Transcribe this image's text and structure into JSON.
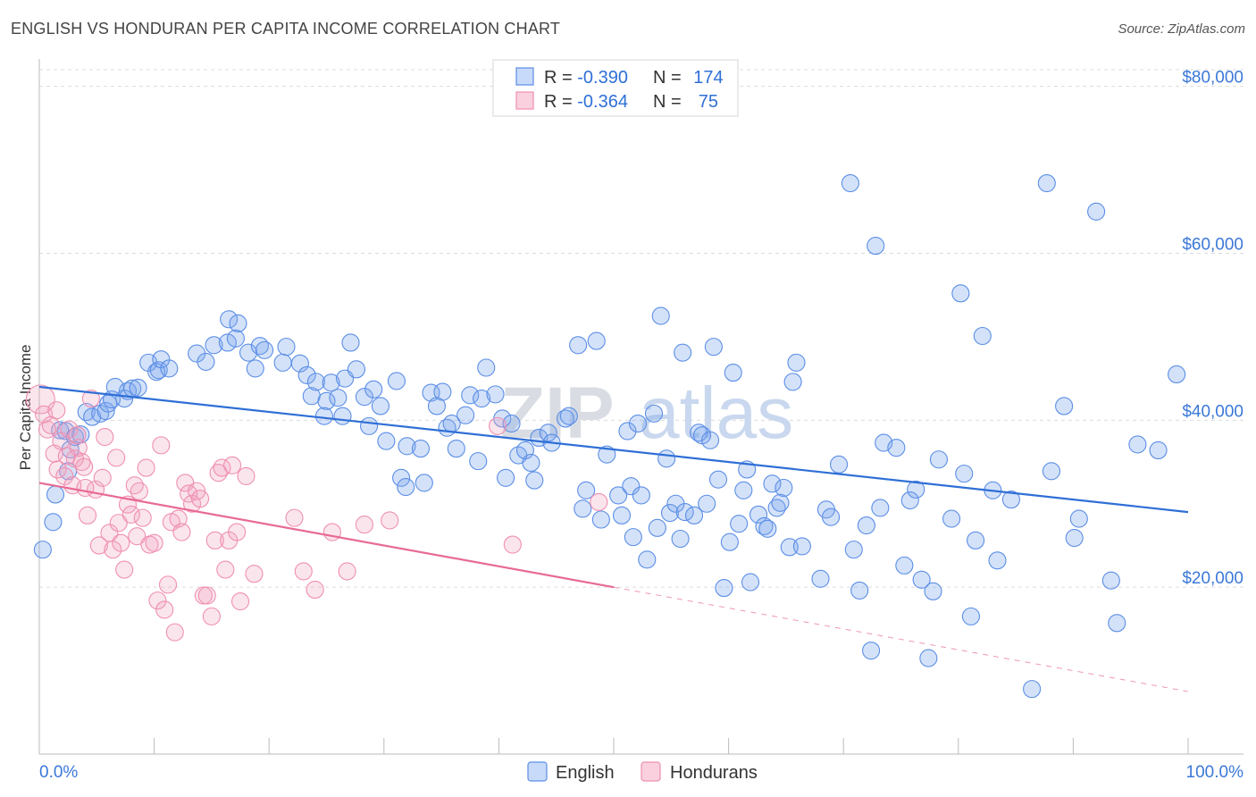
{
  "title": "ENGLISH VS HONDURAN PER CAPITA INCOME CORRELATION CHART",
  "source": "Source: ZipAtlas.com",
  "watermark": {
    "zip": "ZIP",
    "atlas": "atlas"
  },
  "legend_box": {
    "rows": [
      {
        "r_label": "R = ",
        "r_value": "-0.390",
        "n_label": "N = ",
        "n_value": "174",
        "color": "#5b8ee6"
      },
      {
        "r_label": "R = ",
        "r_value": "-0.364",
        "n_label": "N = ",
        "n_value": " 75",
        "color": "#ef8fb0"
      }
    ]
  },
  "bottom_legend": [
    {
      "label": "English",
      "color": "#5b8ee6"
    },
    {
      "label": "Hondurans",
      "color": "#ef8fb0"
    }
  ],
  "colors": {
    "english": "#5b8ee6",
    "hondurans": "#ef8fb0",
    "english_line": "#2f6fd6",
    "hondurans_line": "#e86a96",
    "tick_label": "#3b78d8"
  },
  "chart_data": {
    "type": "scatter",
    "title": "ENGLISH VS HONDURAN PER CAPITA INCOME CORRELATION CHART",
    "xlabel": "",
    "ylabel": "Per Capita Income",
    "x_ticks_labels": [
      "0.0%",
      "100.0%"
    ],
    "y_ticks_labels": [
      "$20,000",
      "$40,000",
      "$60,000",
      "$80,000"
    ],
    "y_ticks": [
      20000,
      40000,
      60000,
      80000
    ],
    "xlim": [
      0,
      100
    ],
    "ylim": [
      0,
      82000
    ],
    "grid": true,
    "legend_placement": "top-center",
    "series": [
      {
        "name": "English",
        "R": -0.39,
        "N": 174,
        "trend": {
          "x": [
            0,
            100
          ],
          "y": [
            44000,
            29000
          ]
        },
        "points": [
          [
            0.3,
            24500
          ],
          [
            1.2,
            27800
          ],
          [
            1.4,
            31100
          ],
          [
            1.8,
            38800
          ],
          [
            2.3,
            38700
          ],
          [
            2.5,
            33900
          ],
          [
            2.7,
            36500
          ],
          [
            3.1,
            38000
          ],
          [
            3.6,
            38300
          ],
          [
            4.1,
            41000
          ],
          [
            4.6,
            40400
          ],
          [
            5.3,
            40800
          ],
          [
            5.8,
            41100
          ],
          [
            6.0,
            42000
          ],
          [
            6.3,
            42500
          ],
          [
            6.6,
            44000
          ],
          [
            7.4,
            42600
          ],
          [
            7.7,
            43500
          ],
          [
            8.1,
            43800
          ],
          [
            8.6,
            43900
          ],
          [
            9.5,
            46900
          ],
          [
            10.2,
            45800
          ],
          [
            10.4,
            46000
          ],
          [
            10.6,
            47300
          ],
          [
            11.3,
            46200
          ],
          [
            13.7,
            48000
          ],
          [
            14.5,
            47000
          ],
          [
            15.2,
            49000
          ],
          [
            16.4,
            49300
          ],
          [
            16.5,
            52100
          ],
          [
            17.1,
            49800
          ],
          [
            17.3,
            51600
          ],
          [
            18.2,
            48100
          ],
          [
            19.2,
            48900
          ],
          [
            19.6,
            48400
          ],
          [
            18.8,
            46200
          ],
          [
            21.2,
            46900
          ],
          [
            21.5,
            48800
          ],
          [
            22.7,
            46800
          ],
          [
            23.3,
            45400
          ],
          [
            23.7,
            42900
          ],
          [
            24.1,
            44600
          ],
          [
            25.0,
            42300
          ],
          [
            25.4,
            44500
          ],
          [
            24.8,
            40500
          ],
          [
            26.0,
            42700
          ],
          [
            26.6,
            45000
          ],
          [
            27.6,
            46100
          ],
          [
            26.4,
            40500
          ],
          [
            27.1,
            49300
          ],
          [
            28.3,
            42800
          ],
          [
            29.1,
            43700
          ],
          [
            28.7,
            39300
          ],
          [
            29.7,
            41700
          ],
          [
            30.2,
            37500
          ],
          [
            31.1,
            44700
          ],
          [
            32.0,
            36900
          ],
          [
            31.5,
            33100
          ],
          [
            31.9,
            32000
          ],
          [
            33.2,
            36600
          ],
          [
            33.5,
            32500
          ],
          [
            34.1,
            43300
          ],
          [
            34.6,
            41700
          ],
          [
            35.1,
            43400
          ],
          [
            35.5,
            39100
          ],
          [
            35.9,
            39600
          ],
          [
            36.3,
            36600
          ],
          [
            37.1,
            40600
          ],
          [
            37.5,
            43000
          ],
          [
            38.2,
            35100
          ],
          [
            38.5,
            42600
          ],
          [
            38.9,
            46300
          ],
          [
            39.7,
            43100
          ],
          [
            40.3,
            40200
          ],
          [
            40.6,
            33100
          ],
          [
            41.1,
            39600
          ],
          [
            41.7,
            35800
          ],
          [
            42.3,
            36400
          ],
          [
            42.8,
            34900
          ],
          [
            43.1,
            32800
          ],
          [
            43.5,
            37900
          ],
          [
            44.3,
            38500
          ],
          [
            44.6,
            37300
          ],
          [
            45.8,
            40200
          ],
          [
            46.1,
            40500
          ],
          [
            46.9,
            49000
          ],
          [
            47.3,
            29400
          ],
          [
            47.6,
            31600
          ],
          [
            48.5,
            49500
          ],
          [
            48.9,
            28100
          ],
          [
            49.4,
            35900
          ],
          [
            50.4,
            31000
          ],
          [
            50.7,
            28600
          ],
          [
            51.2,
            38700
          ],
          [
            51.5,
            32100
          ],
          [
            51.7,
            26000
          ],
          [
            52.1,
            39600
          ],
          [
            52.4,
            31000
          ],
          [
            52.9,
            23300
          ],
          [
            53.5,
            40800
          ],
          [
            53.8,
            27100
          ],
          [
            54.1,
            52500
          ],
          [
            54.6,
            35400
          ],
          [
            54.9,
            28900
          ],
          [
            55.4,
            30000
          ],
          [
            55.8,
            25800
          ],
          [
            56.0,
            48100
          ],
          [
            56.2,
            29000
          ],
          [
            57.0,
            28600
          ],
          [
            57.4,
            38500
          ],
          [
            57.7,
            38200
          ],
          [
            58.1,
            30000
          ],
          [
            58.4,
            37600
          ],
          [
            58.7,
            48800
          ],
          [
            59.1,
            32900
          ],
          [
            59.6,
            19900
          ],
          [
            60.1,
            25400
          ],
          [
            60.4,
            45700
          ],
          [
            60.9,
            27600
          ],
          [
            61.3,
            31600
          ],
          [
            61.6,
            34100
          ],
          [
            61.9,
            20600
          ],
          [
            62.6,
            28700
          ],
          [
            63.1,
            27300
          ],
          [
            63.4,
            27000
          ],
          [
            63.8,
            32400
          ],
          [
            64.2,
            29500
          ],
          [
            64.5,
            30100
          ],
          [
            64.8,
            31900
          ],
          [
            65.3,
            24800
          ],
          [
            65.6,
            44600
          ],
          [
            65.9,
            46900
          ],
          [
            66.4,
            24900
          ],
          [
            68.0,
            21000
          ],
          [
            68.5,
            29300
          ],
          [
            68.9,
            28400
          ],
          [
            69.6,
            34700
          ],
          [
            70.6,
            68400
          ],
          [
            70.9,
            24500
          ],
          [
            71.4,
            19600
          ],
          [
            72.0,
            27400
          ],
          [
            72.4,
            12400
          ],
          [
            72.8,
            60900
          ],
          [
            73.2,
            29500
          ],
          [
            73.5,
            37300
          ],
          [
            74.6,
            36700
          ],
          [
            75.3,
            22600
          ],
          [
            75.8,
            30400
          ],
          [
            76.3,
            31700
          ],
          [
            76.8,
            20900
          ],
          [
            77.4,
            11500
          ],
          [
            77.8,
            19500
          ],
          [
            78.3,
            35300
          ],
          [
            79.4,
            28200
          ],
          [
            80.2,
            55200
          ],
          [
            80.5,
            33600
          ],
          [
            81.1,
            16500
          ],
          [
            81.5,
            25600
          ],
          [
            82.1,
            50100
          ],
          [
            83.0,
            31600
          ],
          [
            83.4,
            23200
          ],
          [
            84.6,
            30500
          ],
          [
            86.4,
            7800
          ],
          [
            87.7,
            68400
          ],
          [
            88.1,
            33900
          ],
          [
            89.2,
            41700
          ],
          [
            90.1,
            25900
          ],
          [
            90.5,
            28200
          ],
          [
            92.0,
            65000
          ],
          [
            93.3,
            20800
          ],
          [
            93.8,
            15700
          ],
          [
            95.6,
            37100
          ],
          [
            97.4,
            36400
          ],
          [
            99.0,
            45500
          ]
        ]
      },
      {
        "name": "Hondurans",
        "R": -0.364,
        "N": 75,
        "trend": {
          "x": [
            0,
            50
          ],
          "y": [
            32500,
            20000
          ]
        },
        "trend_extension": {
          "x": [
            50,
            100
          ],
          "y": [
            20000,
            7500
          ]
        },
        "points": [
          [
            0.1,
            42500
          ],
          [
            0.4,
            40700
          ],
          [
            0.7,
            38900
          ],
          [
            1.0,
            39400
          ],
          [
            1.3,
            36000
          ],
          [
            1.6,
            34100
          ],
          [
            1.9,
            37500
          ],
          [
            2.2,
            33300
          ],
          [
            2.6,
            38900
          ],
          [
            2.9,
            32200
          ],
          [
            3.1,
            35400
          ],
          [
            3.4,
            36700
          ],
          [
            3.7,
            35000
          ],
          [
            3.9,
            34400
          ],
          [
            4.2,
            28600
          ],
          [
            4.5,
            42600
          ],
          [
            4.9,
            31700
          ],
          [
            5.2,
            25000
          ],
          [
            5.5,
            33100
          ],
          [
            5.7,
            38000
          ],
          [
            6.1,
            26500
          ],
          [
            6.4,
            24500
          ],
          [
            6.7,
            35500
          ],
          [
            6.9,
            27700
          ],
          [
            7.1,
            25300
          ],
          [
            7.4,
            22100
          ],
          [
            7.7,
            29900
          ],
          [
            8.0,
            28700
          ],
          [
            8.3,
            32200
          ],
          [
            8.5,
            26100
          ],
          [
            8.7,
            31500
          ],
          [
            9.0,
            28300
          ],
          [
            9.3,
            34300
          ],
          [
            9.6,
            25100
          ],
          [
            10.0,
            25300
          ],
          [
            10.3,
            18400
          ],
          [
            10.6,
            37000
          ],
          [
            10.9,
            17300
          ],
          [
            11.2,
            20300
          ],
          [
            11.5,
            27800
          ],
          [
            11.8,
            14600
          ],
          [
            12.1,
            28200
          ],
          [
            12.4,
            26600
          ],
          [
            12.7,
            32500
          ],
          [
            13.0,
            31200
          ],
          [
            13.3,
            30000
          ],
          [
            13.7,
            31500
          ],
          [
            14.0,
            30600
          ],
          [
            14.3,
            19000
          ],
          [
            14.6,
            19000
          ],
          [
            15.0,
            16500
          ],
          [
            15.3,
            25600
          ],
          [
            15.6,
            33700
          ],
          [
            15.9,
            34300
          ],
          [
            16.2,
            22100
          ],
          [
            16.5,
            25600
          ],
          [
            16.8,
            34600
          ],
          [
            17.2,
            26600
          ],
          [
            17.5,
            18300
          ],
          [
            18.0,
            33300
          ],
          [
            18.7,
            21600
          ],
          [
            22.2,
            28300
          ],
          [
            23.0,
            21900
          ],
          [
            24.0,
            19700
          ],
          [
            25.5,
            26600
          ],
          [
            26.8,
            21900
          ],
          [
            28.3,
            27500
          ],
          [
            30.5,
            28000
          ],
          [
            39.9,
            39300
          ],
          [
            41.2,
            25100
          ],
          [
            48.7,
            30200
          ],
          [
            1.5,
            41200
          ],
          [
            2.4,
            35700
          ],
          [
            3.3,
            38200
          ],
          [
            4.0,
            31900
          ]
        ]
      }
    ]
  }
}
